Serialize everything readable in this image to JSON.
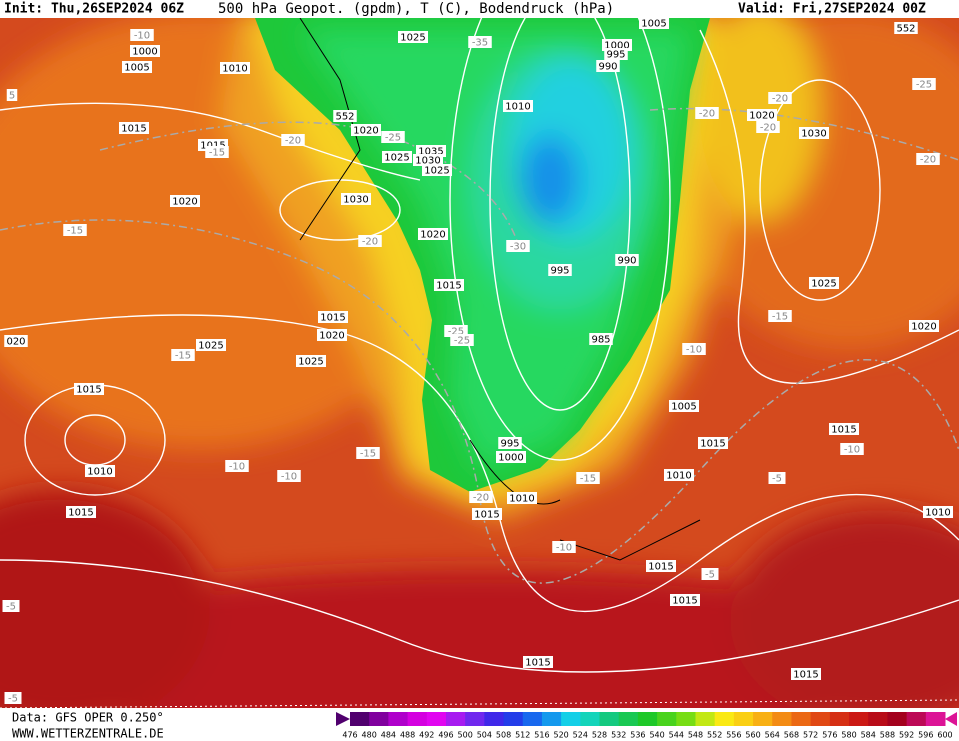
{
  "header": {
    "init": "Init: Thu,26SEP2024 06Z",
    "title": "500 hPa Geopot. (gpdm), T (C), Bodendruck (hPa)",
    "valid": "Valid: Fri,27SEP2024 00Z"
  },
  "footer": {
    "source": "Data: GFS OPER 0.250°",
    "site": "WWW.WETTERZENTRALE.DE"
  },
  "colorbar": {
    "labels": [
      "476",
      "480",
      "484",
      "488",
      "492",
      "496",
      "500",
      "504",
      "508",
      "512",
      "516",
      "520",
      "524",
      "528",
      "532",
      "536",
      "540",
      "544",
      "548",
      "552",
      "556",
      "560",
      "564",
      "568",
      "572",
      "576",
      "580",
      "584",
      "588",
      "592",
      "596",
      "600"
    ]
  },
  "map": {
    "geopotential_labels": [
      "552",
      "552"
    ],
    "isobar_labels": [
      "1000",
      "1005",
      "1010",
      "1015",
      "1015",
      "1020",
      "1025",
      "1020",
      "1025",
      "1035",
      "1030",
      "1025",
      "1030",
      "1020",
      "1015",
      "1015",
      "1020",
      "1025",
      "1025",
      "1015",
      "1010",
      "1015",
      "020",
      "1010",
      "1005",
      "1000",
      "995",
      "990",
      "995",
      "990",
      "985",
      "995",
      "1000",
      "1010",
      "1015",
      "1020",
      "1030",
      "1025",
      "1020",
      "1005",
      "1015",
      "1010",
      "1015",
      "1010",
      "1015",
      "1015",
      "1015",
      "1015"
    ],
    "temperature_labels": [
      "-10",
      "-15",
      "-20",
      "-25",
      "-35",
      "-20",
      "-20",
      "-20",
      "-25",
      "-20",
      "-15",
      "-20",
      "-30",
      "-25",
      "-25",
      "-15",
      "-10",
      "-15",
      "-15",
      "-10",
      "-10",
      "-20",
      "-15",
      "-10",
      "-5",
      "-10",
      "-5",
      "-5",
      "-5",
      "5"
    ]
  }
}
